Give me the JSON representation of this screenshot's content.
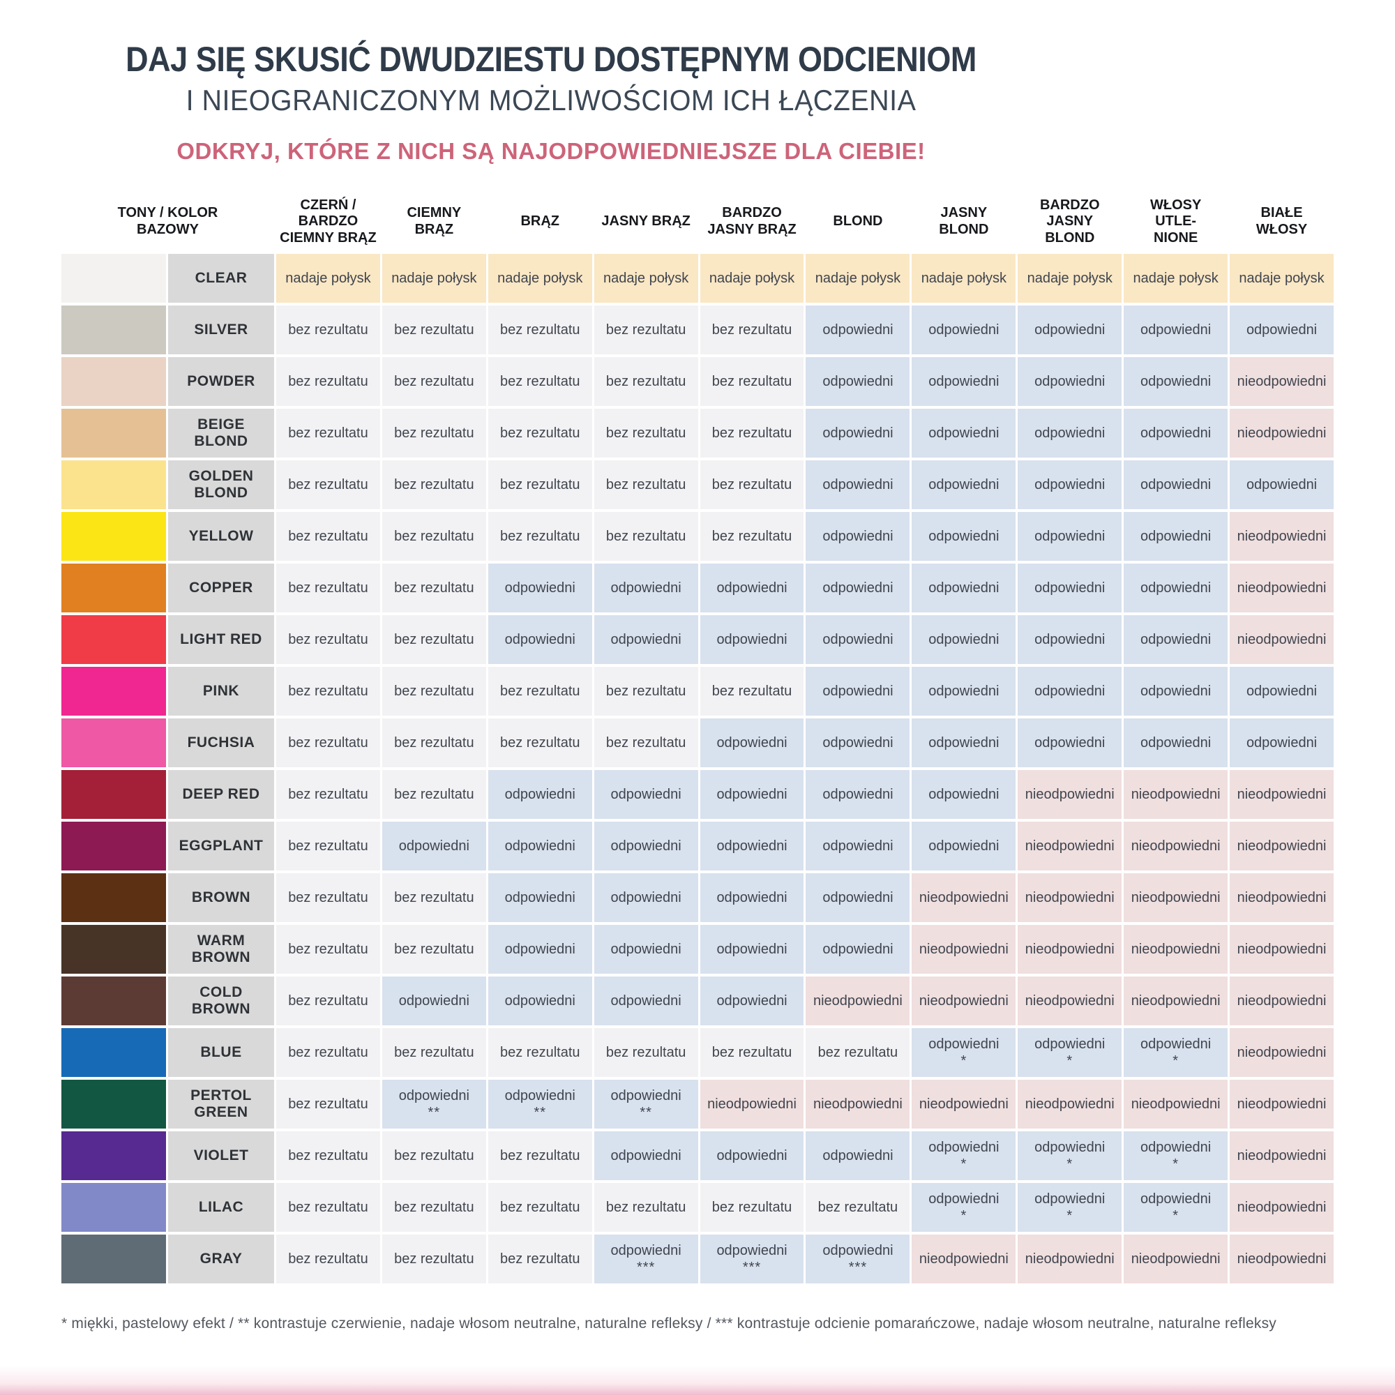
{
  "page": {
    "title": "DAJ SIĘ SKUSIĆ DWUDZIESTU DOSTĘPNYM ODCIENIOM",
    "subtitle": "I NIEOGRANICZONYM MOŻLIWOŚCIOM ICH ŁĄCZENIA",
    "tagline": "ODKRYJ, KTÓRE Z NICH SĄ NAJODPOWIEDNIEJSZE DLA CIEBIE!",
    "footnotes": [
      "* miękki, pastelowy efekt",
      "** kontrastuje czerwienie, nadaje włosom neutralne, naturalne refleksy",
      "*** kontrastuje odcienie pomarańczowe, nadaje włosom neutralne, naturalne refleksy"
    ],
    "footnote_separator": "   /   "
  },
  "colors": {
    "title": "#2f3b49",
    "subtitle": "#3b4754",
    "tagline": "#cd6379",
    "name_cell_bg": "#d9d9d9",
    "bottom_bar": "#f0bccd"
  },
  "table": {
    "corner_header": "TONY / KOLOR\nBAZOWY",
    "columns": [
      "CZERŃ /\nBARDZO\nCIEMNY BRĄZ",
      "CIEMNY\nBRĄZ",
      "BRĄZ",
      "JASNY BRĄZ",
      "BARDZO\nJASNY BRĄZ",
      "BLOND",
      "JASNY\nBLOND",
      "BARDZO\nJASNY\nBLOND",
      "WŁOSY\nUTLE-\nNIONE",
      "BIAŁE\nWŁOSY"
    ],
    "legend": {
      "shine": {
        "label": "nadaje połysk",
        "bg": "#fae7c4"
      },
      "none": {
        "label": "bez rezultatu",
        "bg": "#f2f2f4"
      },
      "ok": {
        "label": "odpowiedni",
        "bg": "#d8e1ee"
      },
      "bad": {
        "label": "nieodpowiedni",
        "bg": "#f0dfdf"
      }
    },
    "rows": [
      {
        "name": "CLEAR",
        "swatch": "#f3f2f0",
        "cells": [
          "shine",
          "shine",
          "shine",
          "shine",
          "shine",
          "shine",
          "shine",
          "shine",
          "shine",
          "shine"
        ]
      },
      {
        "name": "SILVER",
        "swatch": "#ccc9c1",
        "cells": [
          "none",
          "none",
          "none",
          "none",
          "none",
          "ok",
          "ok",
          "ok",
          "ok",
          "ok"
        ]
      },
      {
        "name": "POWDER",
        "swatch": "#ead3c5",
        "cells": [
          "none",
          "none",
          "none",
          "none",
          "none",
          "ok",
          "ok",
          "ok",
          "ok",
          "bad"
        ]
      },
      {
        "name": "BEIGE\nBLOND",
        "swatch": "#e5c095",
        "cells": [
          "none",
          "none",
          "none",
          "none",
          "none",
          "ok",
          "ok",
          "ok",
          "ok",
          "bad"
        ]
      },
      {
        "name": "GOLDEN\nBLOND",
        "swatch": "#fbe38d",
        "cells": [
          "none",
          "none",
          "none",
          "none",
          "none",
          "ok",
          "ok",
          "ok",
          "ok",
          "ok"
        ]
      },
      {
        "name": "YELLOW",
        "swatch": "#fce515",
        "cells": [
          "none",
          "none",
          "none",
          "none",
          "none",
          "ok",
          "ok",
          "ok",
          "ok",
          "bad"
        ]
      },
      {
        "name": "COPPER",
        "swatch": "#e08021",
        "cells": [
          "none",
          "none",
          "ok",
          "ok",
          "ok",
          "ok",
          "ok",
          "ok",
          "ok",
          "bad"
        ]
      },
      {
        "name": "LIGHT RED",
        "swatch": "#ef3c46",
        "cells": [
          "none",
          "none",
          "ok",
          "ok",
          "ok",
          "ok",
          "ok",
          "ok",
          "ok",
          "bad"
        ]
      },
      {
        "name": "PINK",
        "swatch": "#f02790",
        "cells": [
          "none",
          "none",
          "none",
          "none",
          "none",
          "ok",
          "ok",
          "ok",
          "ok",
          "ok"
        ]
      },
      {
        "name": "FUCHSIA",
        "swatch": "#ef58a5",
        "cells": [
          "none",
          "none",
          "none",
          "none",
          "ok",
          "ok",
          "ok",
          "ok",
          "ok",
          "ok"
        ]
      },
      {
        "name": "DEEP RED",
        "swatch": "#a32038",
        "cells": [
          "none",
          "none",
          "ok",
          "ok",
          "ok",
          "ok",
          "ok",
          "bad",
          "bad",
          "bad"
        ]
      },
      {
        "name": "EGGPLANT",
        "swatch": "#8e1a53",
        "cells": [
          "none",
          "ok",
          "ok",
          "ok",
          "ok",
          "ok",
          "ok",
          "bad",
          "bad",
          "bad"
        ]
      },
      {
        "name": "BROWN",
        "swatch": "#5b3013",
        "cells": [
          "none",
          "none",
          "ok",
          "ok",
          "ok",
          "ok",
          "bad",
          "bad",
          "bad",
          "bad"
        ]
      },
      {
        "name": "WARM\nBROWN",
        "swatch": "#473426",
        "cells": [
          "none",
          "none",
          "ok",
          "ok",
          "ok",
          "ok",
          "bad",
          "bad",
          "bad",
          "bad"
        ]
      },
      {
        "name": "COLD\nBROWN",
        "swatch": "#5d3b35",
        "cells": [
          "none",
          "ok",
          "ok",
          "ok",
          "ok",
          "bad",
          "bad",
          "bad",
          "bad",
          "bad"
        ]
      },
      {
        "name": "BLUE",
        "swatch": "#176ab6",
        "cells": [
          "none",
          "none",
          "none",
          "none",
          "none",
          "none",
          "ok*",
          "ok*",
          "ok*",
          "bad"
        ]
      },
      {
        "name": "PERTOL\nGREEN",
        "swatch": "#125741",
        "cells": [
          "none",
          "ok**",
          "ok**",
          "ok**",
          "bad",
          "bad",
          "bad",
          "bad",
          "bad",
          "bad"
        ]
      },
      {
        "name": "VIOLET",
        "swatch": "#562a90",
        "cells": [
          "none",
          "none",
          "none",
          "ok",
          "ok",
          "ok",
          "ok*",
          "ok*",
          "ok*",
          "bad"
        ]
      },
      {
        "name": "LILAC",
        "swatch": "#8289c8",
        "cells": [
          "none",
          "none",
          "none",
          "none",
          "none",
          "none",
          "ok*",
          "ok*",
          "ok*",
          "bad"
        ]
      },
      {
        "name": "GRAY",
        "swatch": "#606c75",
        "cells": [
          "none",
          "none",
          "none",
          "ok***",
          "ok***",
          "ok***",
          "bad",
          "bad",
          "bad",
          "bad"
        ]
      }
    ]
  }
}
